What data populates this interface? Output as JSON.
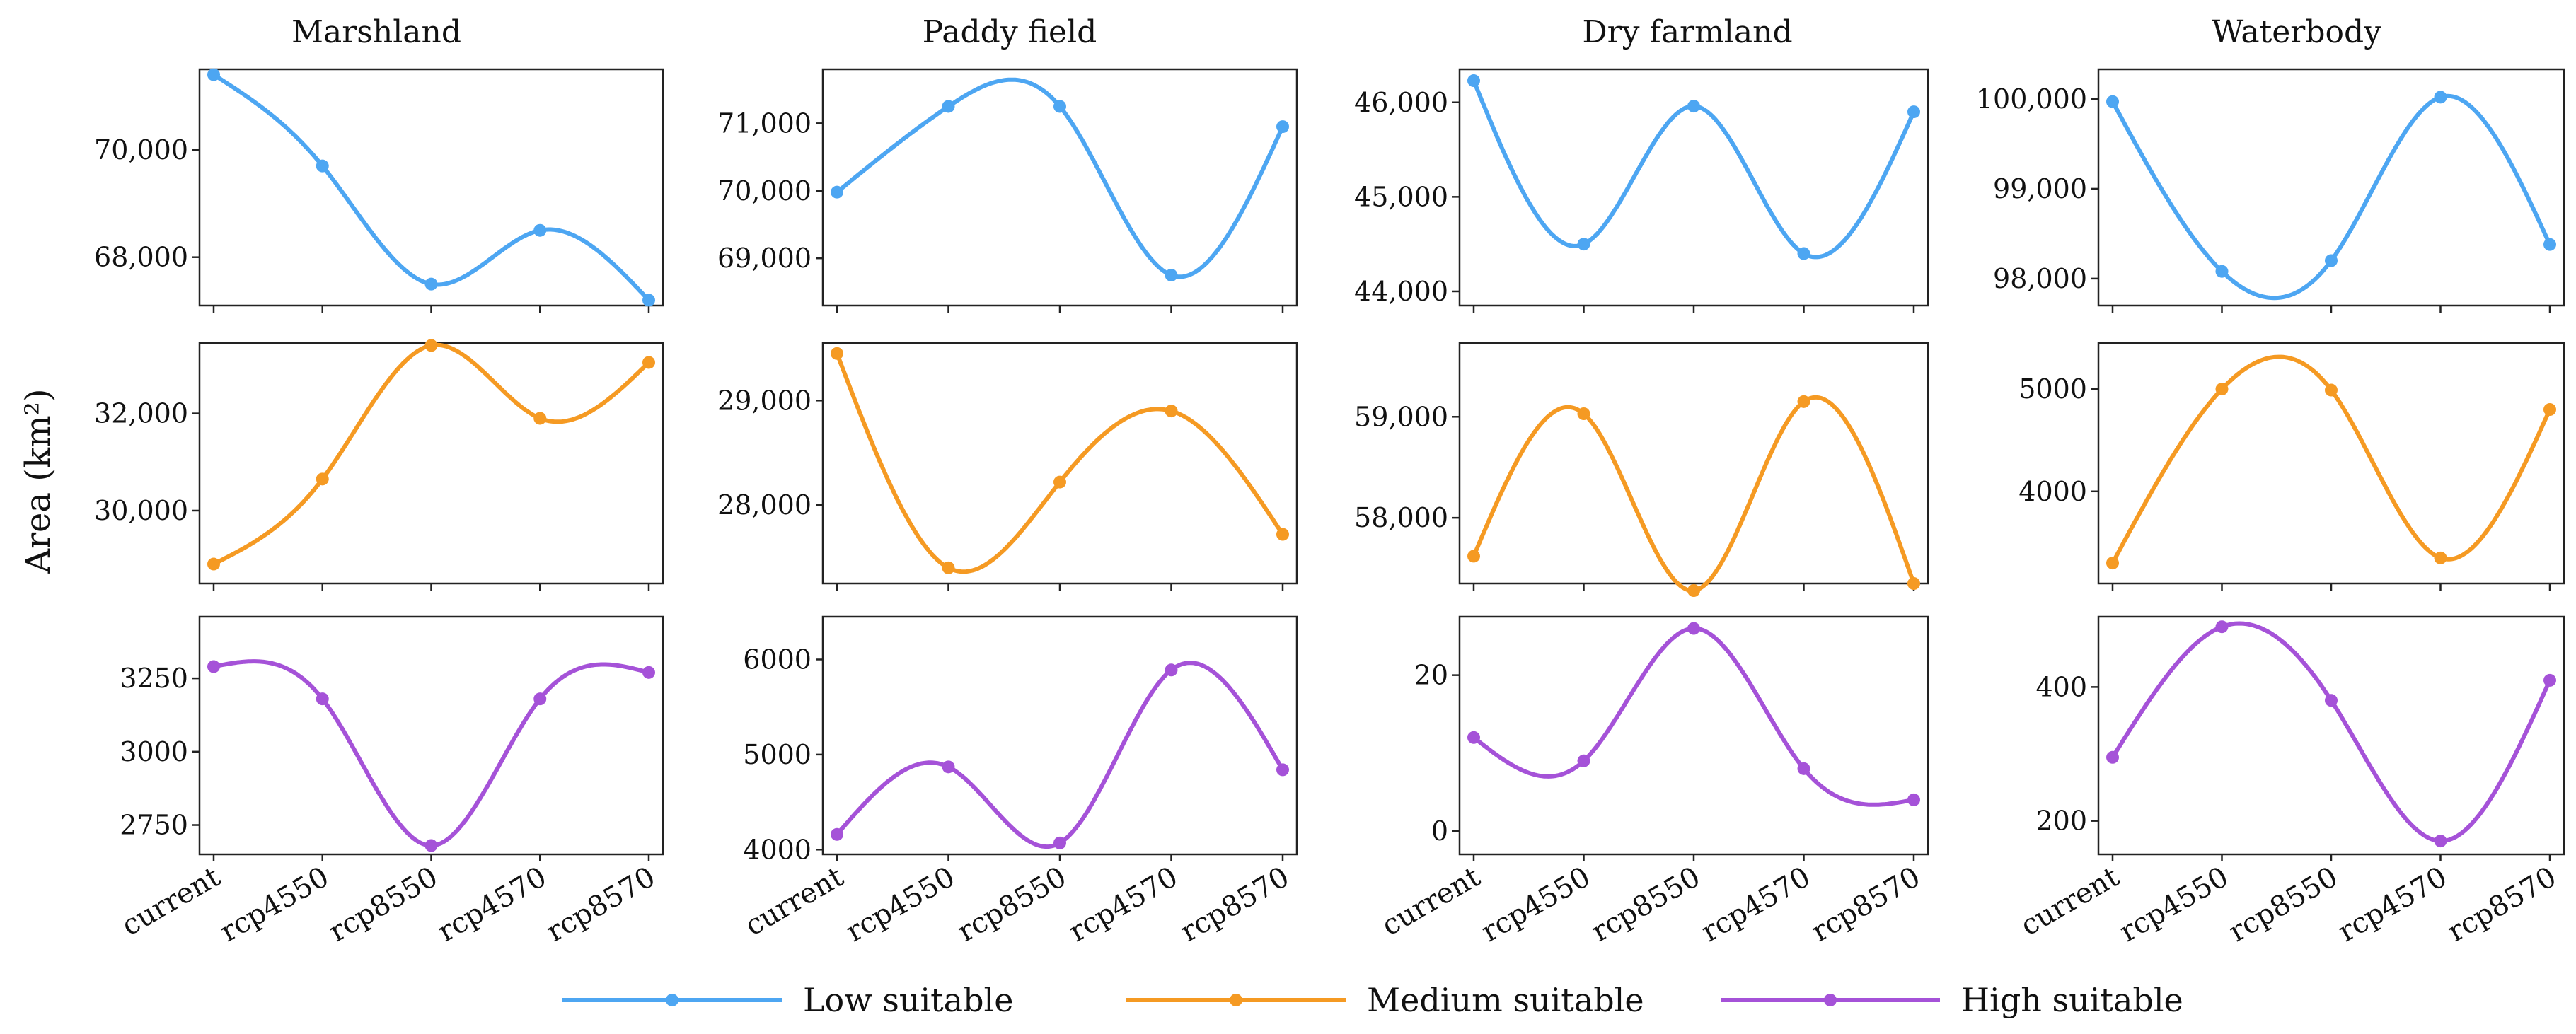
{
  "chart_data": {
    "type": "line",
    "ylabel": "Area (km²)",
    "categories": [
      "current",
      "rcp4550",
      "rcp8550",
      "rcp4570",
      "rcp8570"
    ],
    "columns": [
      "Marshland",
      "Paddy field",
      "Dry farmland",
      "Waterbody"
    ],
    "legend": [
      {
        "name": "Low suitable",
        "color": "#4da6f2"
      },
      {
        "name": "Medium suitable",
        "color": "#f59a23"
      },
      {
        "name": "High suitable",
        "color": "#a552d8"
      }
    ],
    "panels": [
      {
        "column": "Marshland",
        "series": "Low suitable",
        "values": [
          71400,
          69700,
          67500,
          68500,
          67200
        ],
        "ylim": [
          67100,
          71500
        ],
        "yticks": [
          68000,
          70000
        ],
        "ytick_labels": [
          "68,000",
          "70,000"
        ]
      },
      {
        "column": "Marshland",
        "series": "Medium suitable",
        "values": [
          28900,
          30650,
          33400,
          31900,
          33050
        ],
        "ylim": [
          28500,
          33450
        ],
        "yticks": [
          30000,
          32000
        ],
        "ytick_labels": [
          "30,000",
          "32,000"
        ]
      },
      {
        "column": "Marshland",
        "series": "High suitable",
        "values": [
          3290,
          3180,
          2680,
          3180,
          3270
        ],
        "ylim": [
          2650,
          3460
        ],
        "yticks": [
          2750,
          3000,
          3250
        ],
        "ytick_labels": [
          "2750",
          "3000",
          "3250"
        ]
      },
      {
        "column": "Paddy field",
        "series": "Low suitable",
        "values": [
          69980,
          71250,
          71250,
          68750,
          70950
        ],
        "ylim": [
          68300,
          71800
        ],
        "yticks": [
          69000,
          70000,
          71000
        ],
        "ytick_labels": [
          "69,000",
          "70,000",
          "71,000"
        ]
      },
      {
        "column": "Paddy field",
        "series": "Medium suitable",
        "values": [
          29450,
          27400,
          28220,
          28900,
          27720
        ],
        "ylim": [
          27250,
          29550
        ],
        "yticks": [
          28000,
          29000
        ],
        "ytick_labels": [
          "28,000",
          "29,000"
        ]
      },
      {
        "column": "Paddy field",
        "series": "High suitable",
        "values": [
          4160,
          4870,
          4070,
          5890,
          4840
        ],
        "ylim": [
          3950,
          6450
        ],
        "yticks": [
          4000,
          5000,
          6000
        ],
        "ytick_labels": [
          "4000",
          "5000",
          "6000"
        ]
      },
      {
        "column": "Dry farmland",
        "series": "Low suitable",
        "values": [
          46230,
          44500,
          45960,
          44400,
          45900
        ],
        "ylim": [
          43850,
          46350
        ],
        "yticks": [
          44000,
          45000,
          46000
        ],
        "ytick_labels": [
          "44,000",
          "45,000",
          "46,000"
        ]
      },
      {
        "column": "Dry farmland",
        "series": "Medium suitable",
        "values": [
          57620,
          59030,
          57280,
          59150,
          57350
        ],
        "ylim": [
          57350,
          59730
        ],
        "yticks": [
          58000,
          59000
        ],
        "ytick_labels": [
          "58,000",
          "59,000"
        ]
      },
      {
        "column": "Dry farmland",
        "series": "High suitable",
        "values": [
          12,
          9,
          26,
          8,
          4
        ],
        "ylim": [
          -3,
          27.5
        ],
        "yticks": [
          0,
          20
        ],
        "ytick_labels": [
          "0",
          "20"
        ]
      },
      {
        "column": "Waterbody",
        "series": "Low suitable",
        "values": [
          99970,
          98080,
          98200,
          100020,
          98380
        ],
        "ylim": [
          97700,
          100330
        ],
        "yticks": [
          98000,
          99000,
          100000
        ],
        "ytick_labels": [
          "98,000",
          "99,000",
          "100,000"
        ]
      },
      {
        "column": "Waterbody",
        "series": "Medium suitable",
        "values": [
          3300,
          5000,
          4990,
          3350,
          4800
        ],
        "ylim": [
          3100,
          5450
        ],
        "yticks": [
          4000,
          5000
        ],
        "ytick_labels": [
          "4000",
          "5000"
        ]
      },
      {
        "column": "Waterbody",
        "series": "High suitable",
        "values": [
          295,
          490,
          380,
          170,
          410
        ],
        "ylim": [
          150,
          505
        ],
        "yticks": [
          200,
          400
        ],
        "ytick_labels": [
          "200",
          "400"
        ]
      }
    ]
  }
}
